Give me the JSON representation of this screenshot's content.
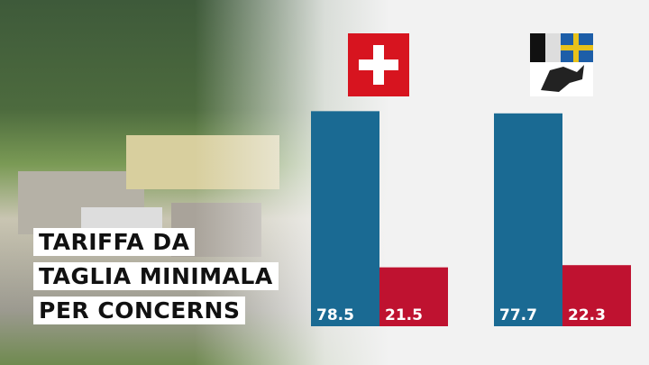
{
  "chart_data": {
    "type": "bar",
    "title": [
      "TARIFFA DA",
      "TAGLIA MINIMALA",
      "PER CONCERNS"
    ],
    "categories": [
      null,
      null
    ],
    "series": [
      {
        "color": "#1a6a93",
        "values": [
          78.5,
          77.7
        ]
      },
      {
        "color": "#bf1230",
        "values": [
          21.5,
          22.3
        ]
      }
    ]
  }
}
